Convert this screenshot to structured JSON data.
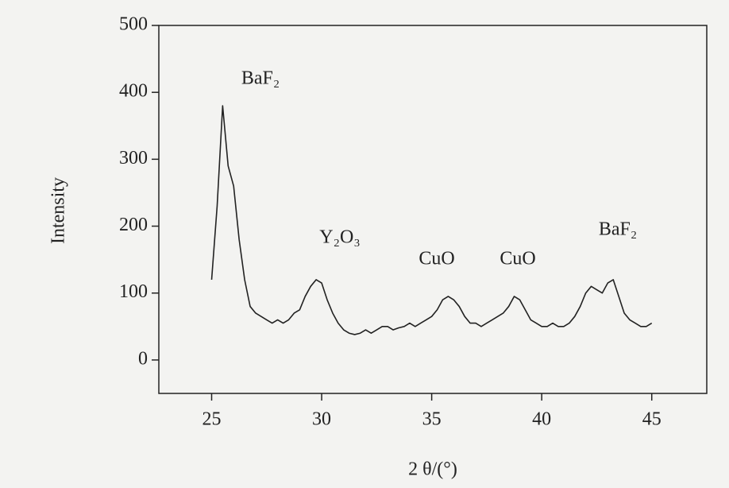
{
  "chart_data": {
    "type": "line",
    "xlabel": "2 θ/(°)",
    "ylabel": "Intensity",
    "x": [
      25,
      25.25,
      25.5,
      25.75,
      26,
      26.25,
      26.5,
      26.75,
      27,
      27.25,
      27.5,
      27.75,
      28,
      28.25,
      28.5,
      28.75,
      29,
      29.25,
      29.5,
      29.75,
      30,
      30.25,
      30.5,
      30.75,
      31,
      31.25,
      31.5,
      31.75,
      32,
      32.25,
      32.5,
      32.75,
      33,
      33.25,
      33.5,
      33.75,
      34,
      34.25,
      34.5,
      34.75,
      35,
      35.25,
      35.5,
      35.75,
      36,
      36.25,
      36.5,
      36.75,
      37,
      37.25,
      37.5,
      37.75,
      38,
      38.25,
      38.5,
      38.75,
      39,
      39.25,
      39.5,
      39.75,
      40,
      40.25,
      40.5,
      40.75,
      41,
      41.25,
      41.5,
      41.75,
      42,
      42.25,
      42.5,
      42.75,
      43,
      43.25,
      43.5,
      43.75,
      44,
      44.25,
      44.5,
      44.75,
      45
    ],
    "series": [
      {
        "color": "#222222",
        "values": [
          120,
          230,
          380,
          290,
          260,
          180,
          120,
          80,
          70,
          65,
          60,
          55,
          60,
          55,
          60,
          70,
          75,
          95,
          110,
          120,
          115,
          90,
          70,
          55,
          45,
          40,
          38,
          40,
          45,
          40,
          45,
          50,
          50,
          45,
          48,
          50,
          55,
          50,
          55,
          60,
          65,
          75,
          90,
          95,
          90,
          80,
          65,
          55,
          55,
          50,
          55,
          60,
          65,
          70,
          80,
          95,
          90,
          75,
          60,
          55,
          50,
          50,
          55,
          50,
          50,
          55,
          65,
          80,
          100,
          110,
          105,
          100,
          115,
          120,
          95,
          70,
          60,
          55,
          50,
          50,
          55
        ]
      }
    ],
    "xlim": [
      22.6,
      47.5
    ],
    "ylim": [
      -50,
      500
    ],
    "xticks": [
      25,
      30,
      35,
      40,
      45
    ],
    "yticks": [
      0,
      100,
      200,
      300,
      400,
      500
    ],
    "annotations": [
      "BaF₂",
      "Y₂O₃",
      "CuO",
      "CuO",
      "BaF₂"
    ]
  }
}
